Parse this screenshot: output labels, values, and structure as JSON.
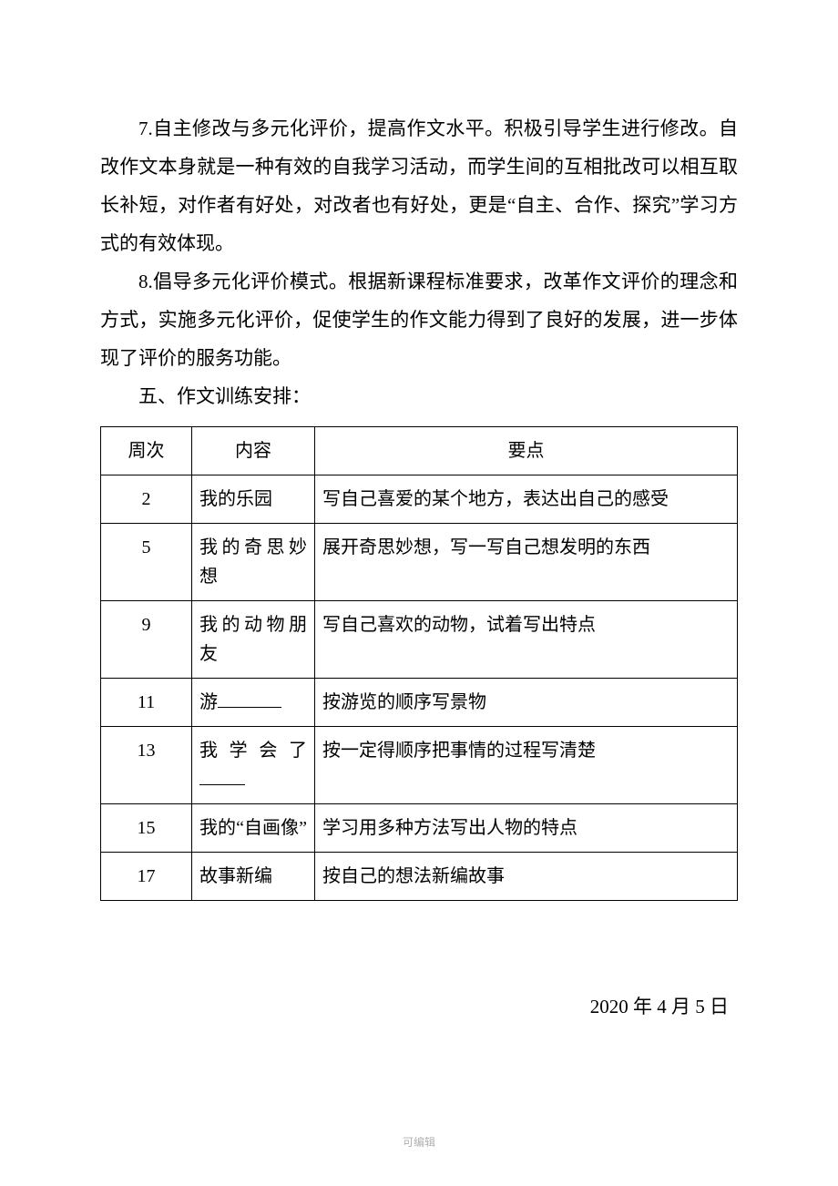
{
  "paragraphs": {
    "p7": "7.自主修改与多元化评价，提高作文水平。积极引导学生进行修改。自改作文本身就是一种有效的自我学习活动，而学生间的互相批改可以相互取长补短，对作者有好处，对改者也有好处，更是“自主、合作、探究”学习方式的有效体现。",
    "p8": "8.倡导多元化评价模式。根据新课程标准要求，改革作文评价的理念和方式，实施多元化评价，促使学生的作文能力得到了良好的发展，进一步体现了评价的服务功能。",
    "section5": "五、作文训练安排："
  },
  "table": {
    "headers": {
      "week": "周次",
      "content": "内容",
      "key": "要点"
    },
    "rows": [
      {
        "week": "2",
        "content": "我的乐园",
        "content_has_blank": false,
        "content_justify": false,
        "key": "写自己喜爱的某个地方，表达出自己的感受"
      },
      {
        "week": "5",
        "content": "我的奇思妙想",
        "content_has_blank": false,
        "content_justify": true,
        "key": "展开奇思妙想，写一写自己想发明的东西"
      },
      {
        "week": "9",
        "content": "我的动物朋友",
        "content_has_blank": false,
        "content_justify": true,
        "key": "写自己喜欢的动物，试着写出特点"
      },
      {
        "week": "11",
        "content": "游",
        "content_has_blank": true,
        "content_justify": false,
        "key": "按游览的顺序写景物"
      },
      {
        "week": "13",
        "content": "我学会了",
        "content_has_blank": true,
        "content_blank_below": true,
        "content_justify": true,
        "key": "按一定得顺序把事情的过程写清楚"
      },
      {
        "week": "15",
        "content": "我的“自画像”",
        "content_has_blank": false,
        "content_justify": true,
        "key": "学习用多种方法写出人物的特点"
      },
      {
        "week": "17",
        "content": "故事新编",
        "content_has_blank": false,
        "content_justify": false,
        "key": "按自己的想法新编故事"
      }
    ]
  },
  "date": "2020 年 4 月 5 日",
  "footer": "可编辑",
  "styles": {
    "body_font_size": 21,
    "table_font_size": 20,
    "line_height": 2,
    "text_color": "#000000",
    "border_color": "#000000",
    "background_color": "#ffffff",
    "footer_color": "#b0b0b0",
    "col_week_width": 100,
    "col_content_width": 135
  }
}
